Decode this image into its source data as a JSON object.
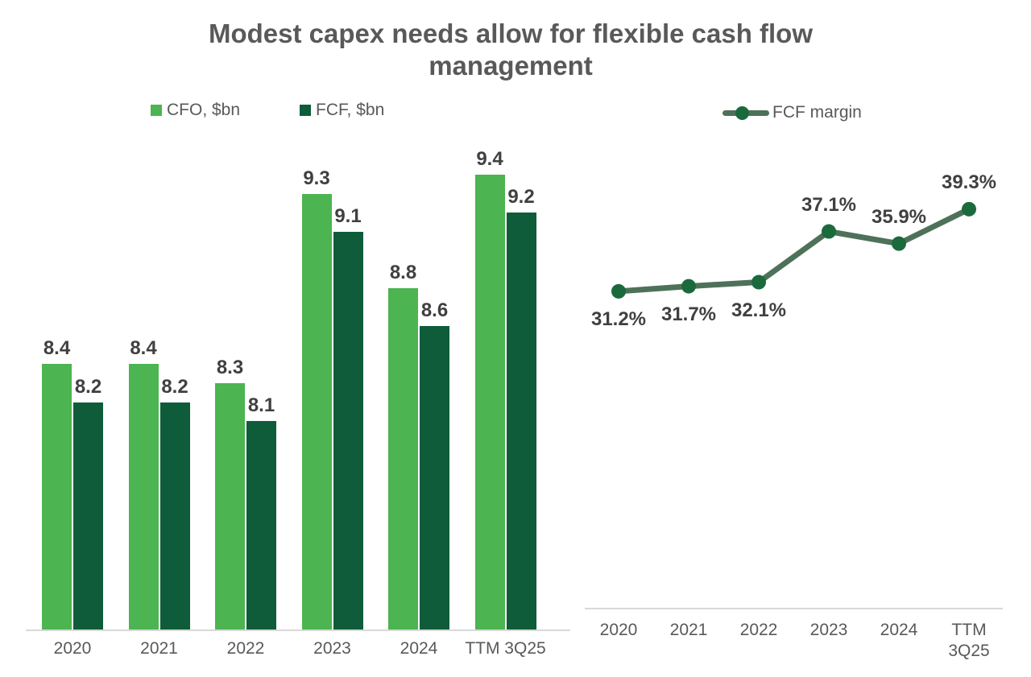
{
  "title": "Modest capex needs allow for flexible cash flow management",
  "colors": {
    "cfo_green": "#4CB451",
    "fcf_green": "#0E5C39",
    "line_green": "#4E7159",
    "marker_green": "#1B6A3C",
    "title_text": "#595959",
    "data_label_text": "#404040",
    "axis_text": "#595959",
    "axis_line": "#D9D9D9",
    "background": "#FFFFFF"
  },
  "chart_data": [
    {
      "type": "bar",
      "categories": [
        "2020",
        "2021",
        "2022",
        "2023",
        "2024",
        "TTM 3Q25"
      ],
      "series": [
        {
          "name": "CFO, $bn",
          "color": "#4CB451",
          "values": [
            8.4,
            8.4,
            8.3,
            9.3,
            8.8,
            9.4
          ],
          "labels": [
            "8.4",
            "8.4",
            "8.3",
            "9.3",
            "8.8",
            "9.4"
          ]
        },
        {
          "name": "FCF, $bn",
          "color": "#0E5C39",
          "values": [
            8.2,
            8.2,
            8.1,
            9.1,
            8.6,
            9.2
          ],
          "labels": [
            "8.2",
            "8.2",
            "8.1",
            "9.1",
            "8.6",
            "9.2"
          ]
        }
      ],
      "xlabel": "",
      "ylabel": "",
      "ylim": [
        7.0,
        9.6
      ],
      "grid": false,
      "value_axis_visible": false,
      "legend_position": "top-left",
      "data_labels_position": "above-bars"
    },
    {
      "type": "line",
      "categories": [
        "2020",
        "2021",
        "2022",
        "2023",
        "2024",
        "TTM 3Q25"
      ],
      "series": [
        {
          "name": "FCF margin",
          "color": "#4E7159",
          "marker_color": "#1B6A3C",
          "values": [
            31.2,
            31.7,
            32.1,
            37.1,
            35.9,
            39.3
          ],
          "labels": [
            "31.2%",
            "31.7%",
            "32.1%",
            "37.1%",
            "35.9%",
            "39.3%"
          ],
          "label_placement": [
            "below",
            "below",
            "below",
            "above",
            "above",
            "above"
          ]
        }
      ],
      "xlabel": "",
      "ylabel": "",
      "ylim": [
        0,
        45
      ],
      "grid": false,
      "value_axis_visible": false,
      "legend_position": "top"
    }
  ]
}
